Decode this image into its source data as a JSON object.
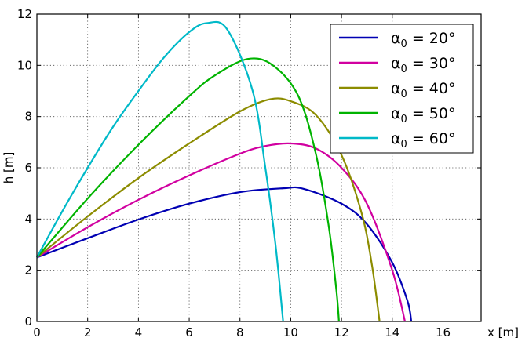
{
  "chart_data": {
    "type": "line",
    "title": "",
    "xlabel": "x [m]",
    "ylabel": "h [m]",
    "xlim": [
      0,
      17.5
    ],
    "ylim": [
      0,
      12
    ],
    "xticks": [
      0,
      2,
      4,
      6,
      8,
      10,
      12,
      14,
      16
    ],
    "yticks": [
      0,
      2,
      4,
      6,
      8,
      10,
      12
    ],
    "grid": true,
    "legend": {
      "position": "top-right"
    },
    "series": [
      {
        "name": "α0 = 20°",
        "label_parts": {
          "symbol": "α",
          "sub": "0",
          "rest": " = 20°"
        },
        "color": "#0000b3",
        "x": [
          0,
          2,
          4,
          6,
          8,
          9.7,
          10.5,
          12,
          13,
          14,
          14.6,
          14.75
        ],
        "y": [
          2.5,
          3.25,
          3.98,
          4.6,
          5.05,
          5.2,
          5.18,
          4.6,
          3.8,
          2.3,
          0.8,
          0
        ]
      },
      {
        "name": "α0 = 30°",
        "label_parts": {
          "symbol": "α",
          "sub": "0",
          "rest": " = 30°"
        },
        "color": "#d100a0",
        "x": [
          0,
          2,
          4,
          6,
          8,
          9,
          10,
          11,
          12,
          13,
          14,
          14.5
        ],
        "y": [
          2.5,
          3.68,
          4.75,
          5.7,
          6.55,
          6.85,
          6.95,
          6.75,
          6.0,
          4.6,
          2.0,
          0
        ]
      },
      {
        "name": "α0 = 40°",
        "label_parts": {
          "symbol": "α",
          "sub": "0",
          "rest": " = 40°"
        },
        "color": "#8c8c00",
        "x": [
          0,
          2,
          4,
          6,
          8,
          9.2,
          10,
          11,
          12,
          12.8,
          13.2,
          13.5
        ],
        "y": [
          2.5,
          4.1,
          5.6,
          6.95,
          8.2,
          8.68,
          8.6,
          8.05,
          6.5,
          4.2,
          2.2,
          0
        ]
      },
      {
        "name": "α0 = 50°",
        "label_parts": {
          "symbol": "α",
          "sub": "0",
          "rest": " = 50°"
        },
        "color": "#00b300",
        "x": [
          0,
          2,
          4,
          6,
          7,
          8.3,
          9.3,
          10.3,
          11,
          11.5,
          11.8,
          11.9
        ],
        "y": [
          2.5,
          4.8,
          6.9,
          8.8,
          9.6,
          10.25,
          10.0,
          8.8,
          6.5,
          3.7,
          1.2,
          0
        ]
      },
      {
        "name": "α0 = 60°",
        "label_parts": {
          "symbol": "α",
          "sub": "0",
          "rest": " = 60°"
        },
        "color": "#00b9c8",
        "x": [
          0,
          1,
          2,
          3,
          4,
          5,
          6,
          6.7,
          7.5,
          8.5,
          9,
          9.4,
          9.7
        ],
        "y": [
          2.5,
          4.3,
          6.0,
          7.6,
          9.0,
          10.3,
          11.3,
          11.65,
          11.4,
          9.0,
          6.0,
          3.0,
          0
        ]
      }
    ]
  }
}
